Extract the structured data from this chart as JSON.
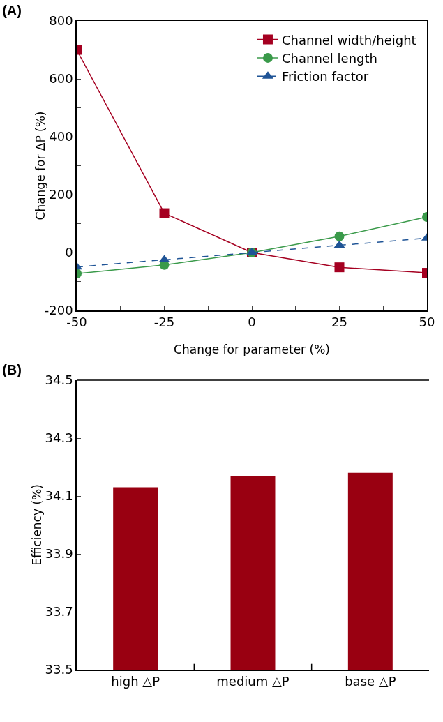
{
  "chart_data": [
    {
      "type": "line",
      "title": "(A)",
      "xlabel": "Change for parameter (%)",
      "ylabel": "Change for ΔP (%)",
      "x": [
        -50,
        -25,
        0,
        25,
        50
      ],
      "series": [
        {
          "name": "Channel width/height",
          "color": "#a50021",
          "marker": "square",
          "line_style": "solid",
          "values": [
            700,
            136,
            0,
            -51,
            -70
          ]
        },
        {
          "name": "Channel length",
          "color": "#3a9a4a",
          "marker": "circle",
          "line_style": "solid",
          "values": [
            -73,
            -43,
            0,
            56,
            123
          ]
        },
        {
          "name": "Friction factor",
          "color": "#1f5496",
          "marker": "triangle",
          "line_style": "dashed",
          "values": [
            -50,
            -25,
            0,
            25,
            50
          ]
        }
      ],
      "xlim": [
        -50,
        50
      ],
      "xticks": [
        -50,
        {
          "value": -37.5,
          "label": null
        },
        -25,
        {
          "value": -12.5,
          "label": null
        },
        0,
        {
          "value": 12.5,
          "label": null
        },
        25,
        {
          "value": 37.5,
          "label": null
        },
        50
      ],
      "ylim": [
        -200,
        800
      ],
      "yticks": [
        -200,
        {
          "value": -100,
          "label": null
        },
        0,
        {
          "value": 100,
          "label": null
        },
        200,
        {
          "value": 300,
          "label": null
        },
        400,
        {
          "value": 500,
          "label": null
        },
        600,
        {
          "value": 700,
          "label": null
        },
        800
      ],
      "grid": false,
      "legend": "top right"
    },
    {
      "type": "bar",
      "title": "(B)",
      "ylabel": "Efficiency (%)",
      "categories": [
        "high △P",
        "medium △P",
        "base △P"
      ],
      "values": [
        34.13,
        34.17,
        34.18
      ],
      "color": "#990011",
      "ylim": [
        33.5,
        34.5
      ],
      "yticks": [
        33.5,
        33.7,
        33.9,
        34.1,
        34.3,
        34.5
      ],
      "grid": false,
      "legend": false
    }
  ]
}
